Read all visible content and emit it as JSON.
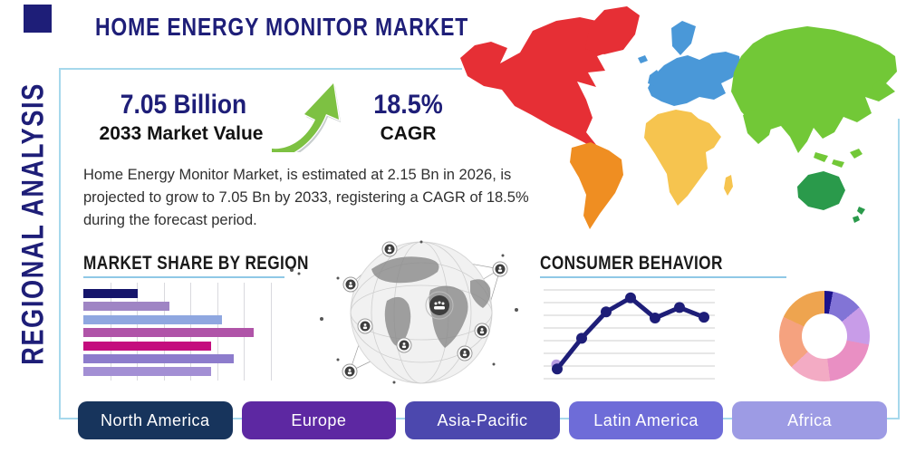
{
  "header": {
    "title": "HOME ENERGY MONITOR MARKET",
    "side_label": "REGIONAL ANALYSIS"
  },
  "highlights": {
    "market_value": "7.05 Billion",
    "market_value_label": "2033 Market Value",
    "cagr_value": "18.5%",
    "cagr_label": "CAGR",
    "description": "Home Energy Monitor Market, is estimated at 2.15 Bn in 2026, is projected to grow to 7.05 Bn by 2033, registering a CAGR of 18.5% during the forecast period."
  },
  "sections": {
    "market_share_title": "MARKET SHARE BY REGION",
    "consumer_behavior_title": "CONSUMER BEHAVIOR"
  },
  "region_buttons": [
    {
      "label": "North America",
      "color": "#17345c"
    },
    {
      "label": "Europe",
      "color": "#5d28a2"
    },
    {
      "label": "Asia-Pacific",
      "color": "#4c48ae"
    },
    {
      "label": "Latin America",
      "color": "#6e6cd8"
    },
    {
      "label": "Africa",
      "color": "#9d9be4"
    }
  ],
  "colors": {
    "navy": "#1e1e78",
    "heading_text": "#1a1a1a",
    "body_text": "#303030",
    "panel_border": "#a6d8ec",
    "underline": "#8fc8e6",
    "arrow_green": "#7dc142",
    "arrow_green_dark": "#55942a",
    "map": {
      "north_america": "#e62f35",
      "south_america": "#ef8e22",
      "europe": "#4a98d8",
      "africa": "#f6c44f",
      "asia": "#72c837",
      "oceania": "#2a9a4b"
    }
  },
  "chart_data": [
    {
      "type": "bar",
      "title": "MARKET SHARE BY REGION",
      "orientation": "horizontal",
      "categories": [
        "",
        "",
        "",
        "",
        "",
        "",
        ""
      ],
      "values": [
        29,
        46,
        74,
        91,
        68,
        80,
        68
      ],
      "value_note": "bars are unlabeled in source; values are percent of axis width",
      "xlim": [
        0,
        100
      ],
      "grid": true,
      "colors": [
        "#15156b",
        "#9f85c4",
        "#8fa7e0",
        "#b054a8",
        "#c40d7e",
        "#8d7ccc",
        "#a38fd4"
      ]
    },
    {
      "type": "line",
      "title": "CONSUMER BEHAVIOR",
      "x": [
        1,
        2,
        3,
        4,
        5,
        6,
        7
      ],
      "values": [
        10,
        45,
        75,
        91,
        68,
        80,
        69
      ],
      "ylim": [
        0,
        100
      ],
      "grid": true,
      "line_color": "#1e1e78",
      "start_marker_color": "#b79ce2",
      "legend": "none"
    },
    {
      "type": "pie",
      "subtype": "donut",
      "title": "",
      "slices": [
        {
          "value": 3,
          "color": "#1c128c"
        },
        {
          "value": 11,
          "color": "#8274d6"
        },
        {
          "value": 14,
          "color": "#c89ce8"
        },
        {
          "value": 20,
          "color": "#e98fc3"
        },
        {
          "value": 15,
          "color": "#f3abc4"
        },
        {
          "value": 19,
          "color": "#f5a27f"
        },
        {
          "value": 18,
          "color": "#eea44f"
        }
      ]
    }
  ]
}
